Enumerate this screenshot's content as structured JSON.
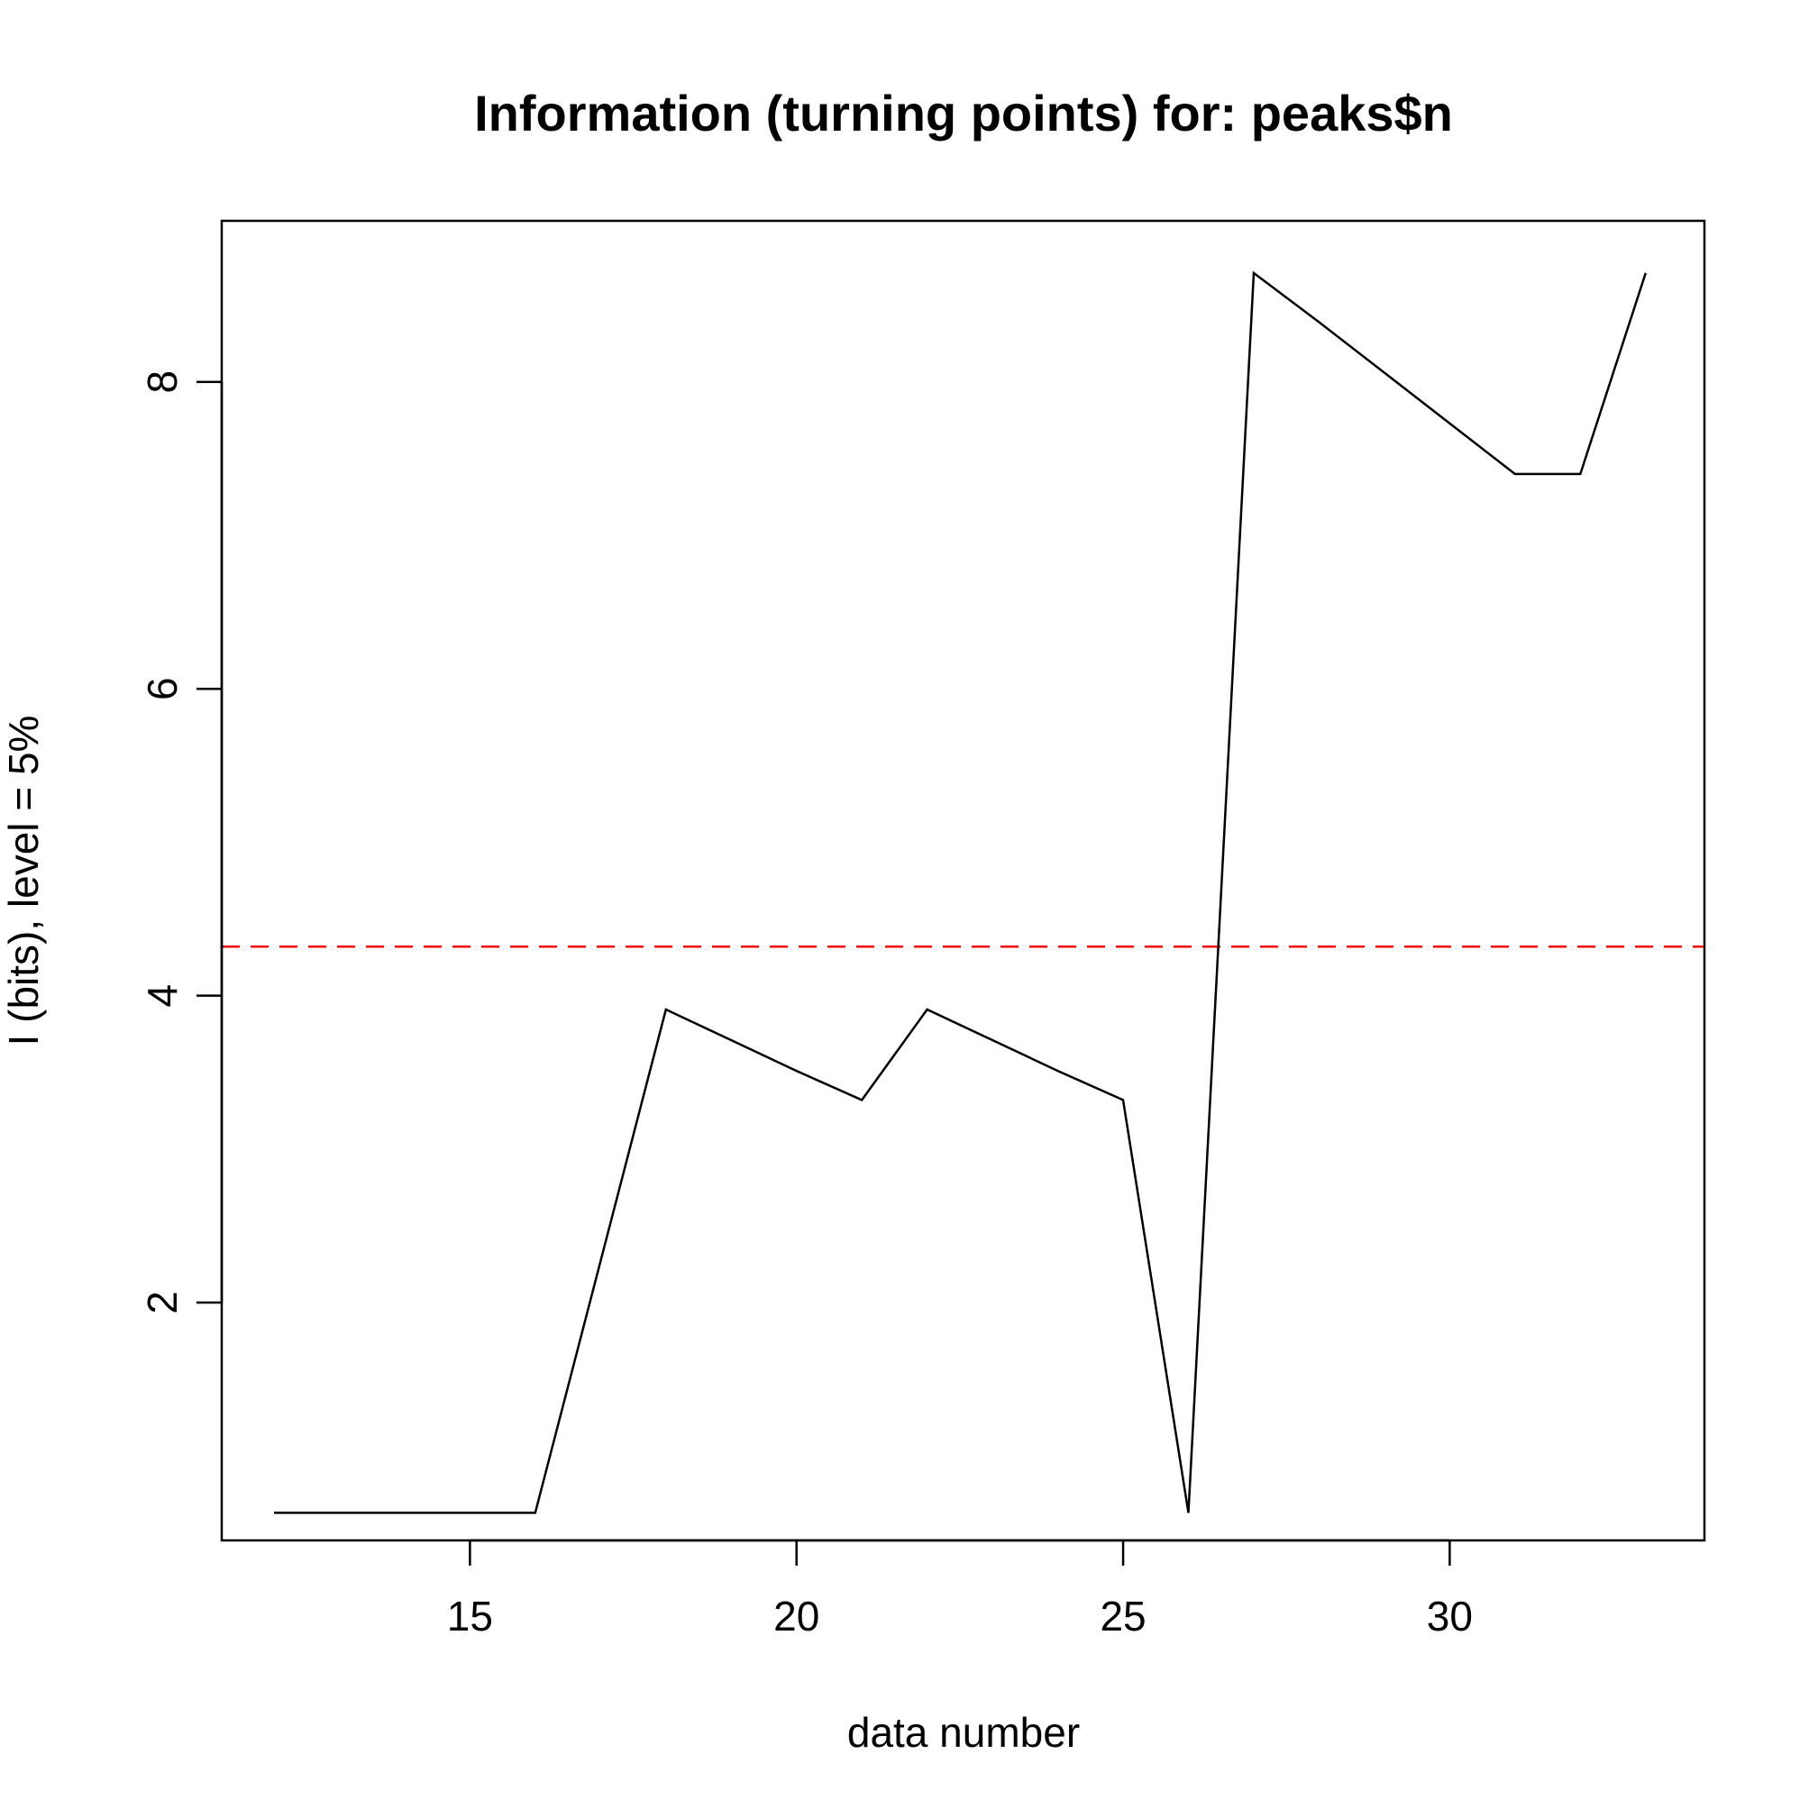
{
  "chart_data": {
    "type": "line",
    "title": "Information (turning points) for: peaks$n",
    "xlabel": "data number",
    "ylabel": "I (bits), level = 5%",
    "xlim": [
      11.2,
      33.9
    ],
    "ylim": [
      0.45,
      9.05
    ],
    "xticks": [
      15,
      20,
      25,
      30
    ],
    "yticks": [
      2,
      4,
      6,
      8
    ],
    "grid": false,
    "series": [
      {
        "color": "#000000",
        "x": [
          12,
          13,
          14,
          15,
          16,
          17,
          18,
          19,
          20,
          21,
          22,
          23,
          24,
          25,
          26,
          27,
          28,
          29,
          30,
          31,
          32,
          33
        ],
        "y": [
          0.63,
          0.63,
          0.63,
          0.63,
          0.63,
          2.27,
          3.91,
          3.71,
          3.51,
          3.32,
          3.91,
          3.71,
          3.51,
          3.32,
          0.63,
          8.71,
          8.39,
          8.06,
          7.73,
          7.4,
          7.4,
          8.71
        ]
      }
    ],
    "reference_line": {
      "y": 4.32,
      "color": "#ff0000",
      "style": "dashed"
    }
  }
}
